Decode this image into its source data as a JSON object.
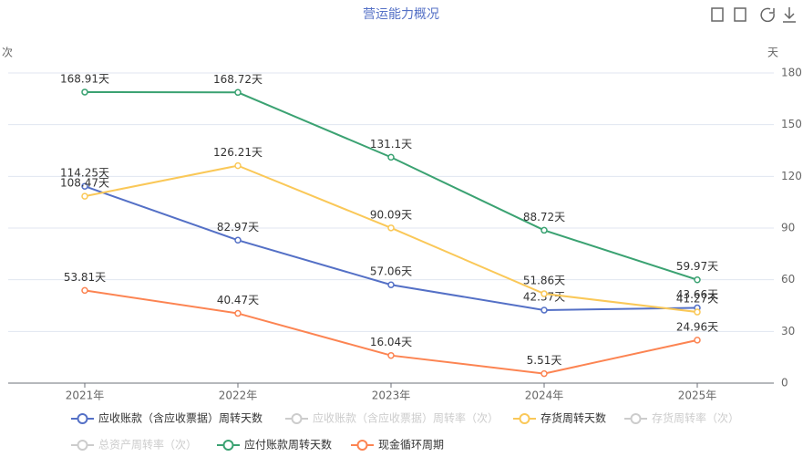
{
  "chart_data": {
    "type": "line",
    "title": "营运能力概况",
    "y_label": "次",
    "y2_label": "天",
    "categories": [
      "2021年",
      "2022年",
      "2023年",
      "2024年",
      "2025年"
    ],
    "y2lim": [
      0,
      180
    ],
    "y2ticks": [
      0,
      30,
      60,
      90,
      120,
      150,
      180
    ],
    "grid": true,
    "legend": "bottom",
    "series": [
      {
        "name": "应收账款（含应收票据）周转天数",
        "color": "#5470c6",
        "axis": "y2",
        "values": [
          114.25,
          82.97,
          57.06,
          42.37,
          43.66
        ],
        "value_labels": [
          "114.25天",
          "82.97天",
          "57.06天",
          "42.37天",
          "43.66天"
        ]
      },
      {
        "name": "应收账款（含应收票据）周转率（次）",
        "color": "#cccccc",
        "visible": false
      },
      {
        "name": "存货周转天数",
        "color": "#fac858",
        "axis": "y2",
        "values": [
          108.47,
          126.21,
          90.09,
          51.86,
          41.27
        ],
        "value_labels": [
          "108.47天",
          "126.21天",
          "90.09天",
          "51.86天",
          "41.27天"
        ]
      },
      {
        "name": "存货周转率（次）",
        "color": "#cccccc",
        "visible": false
      },
      {
        "name": "总资产周转率（次）",
        "color": "#cccccc",
        "visible": false
      },
      {
        "name": "应付账款周转天数",
        "color": "#3ba272",
        "axis": "y2",
        "values": [
          168.91,
          168.72,
          131.1,
          88.72,
          59.97
        ],
        "value_labels": [
          "168.91天",
          "168.72天",
          "131.1天",
          "88.72天",
          "59.97天"
        ]
      },
      {
        "name": "现金循环周期",
        "color": "#fc8452",
        "axis": "y2",
        "values": [
          53.81,
          40.47,
          16.04,
          5.51,
          24.96
        ],
        "value_labels": [
          "53.81天",
          "40.47天",
          "16.04天",
          "5.51天",
          "24.96天"
        ]
      }
    ]
  }
}
